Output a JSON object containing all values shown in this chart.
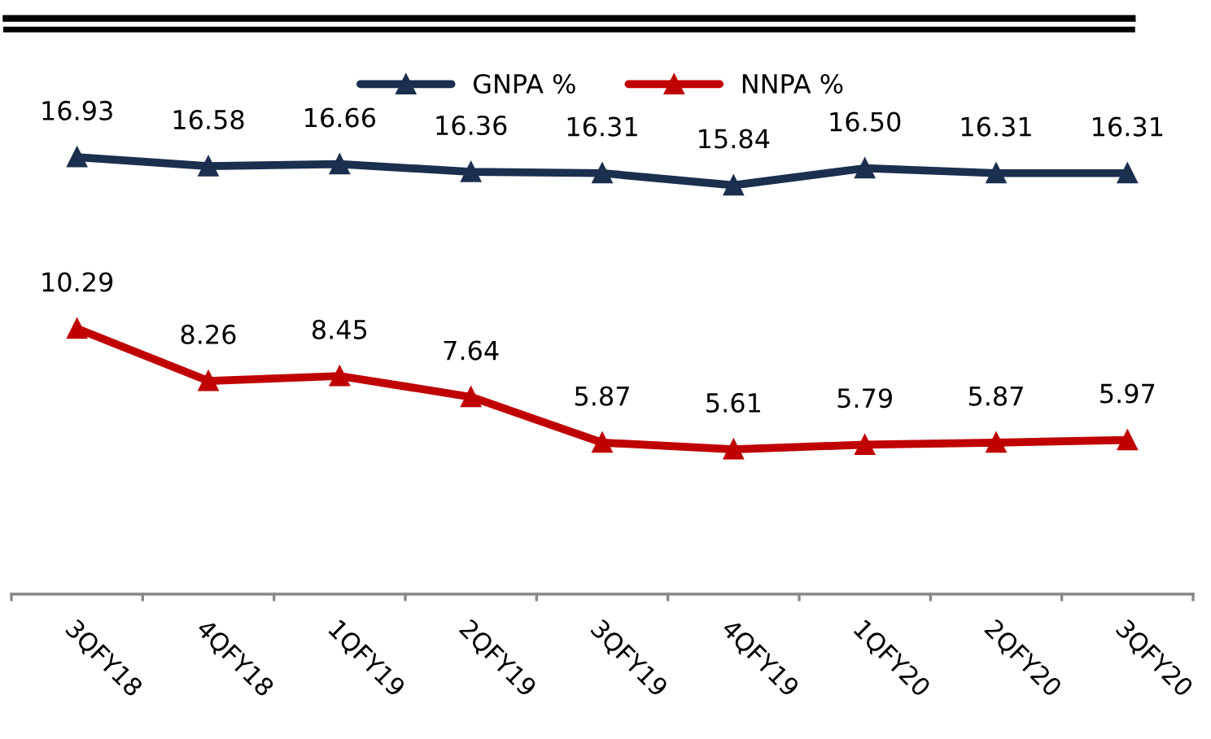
{
  "chart_data": {
    "type": "line",
    "categories": [
      "3QFY18",
      "4QFY18",
      "1QFY19",
      "2QFY19",
      "3QFY19",
      "4QFY19",
      "1QFY20",
      "2QFY20",
      "3QFY20"
    ],
    "series": [
      {
        "name": "GNPA %",
        "color": "#1b2f4f",
        "values": [
          16.93,
          16.58,
          16.66,
          16.36,
          16.31,
          15.84,
          16.5,
          16.31,
          16.31
        ],
        "value_labels": [
          "16.93",
          "16.58",
          "16.66",
          "16.36",
          "16.31",
          "15.84",
          "16.50",
          "16.31",
          "16.31"
        ]
      },
      {
        "name": "NNPA %",
        "color": "#c00000",
        "values": [
          10.29,
          8.26,
          8.45,
          7.64,
          5.87,
          5.61,
          5.79,
          5.87,
          5.97
        ],
        "value_labels": [
          "10.29",
          "8.26",
          "8.45",
          "7.64",
          "5.87",
          "5.61",
          "5.79",
          "5.87",
          "5.97"
        ]
      }
    ],
    "tick_labels": "x",
    "legend": "top",
    "marker": "triangle",
    "line_style": "solid",
    "grid": false
  }
}
